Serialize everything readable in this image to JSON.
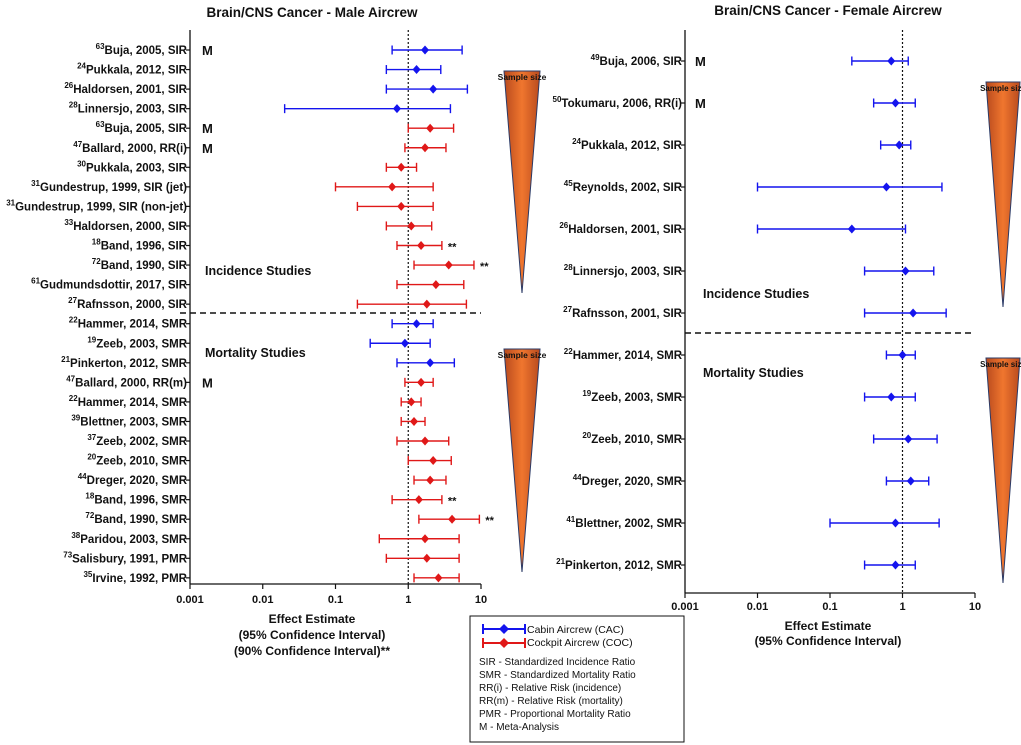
{
  "colors": {
    "cabin": "#1414ee",
    "cockpit": "#e01818",
    "axis": "#111111",
    "text": "#111111"
  },
  "icons": {
    "marker": "diamond-icon",
    "sample_size": "sample-size-triangle-icon"
  },
  "chart_data": [
    {
      "type": "forest",
      "title": "Brain/CNS Cancer - Male Aircrew",
      "xscale": "log",
      "xlim": [
        0.001,
        10
      ],
      "ticks": [
        0.001,
        0.01,
        0.1,
        1,
        10
      ],
      "tick_labels": [
        "0.001",
        "0.01",
        "0.1",
        "1",
        "10"
      ],
      "xlabel_lines": [
        "Effect Estimate",
        "(95%  Confidence  Interval)",
        "(90% Confidence Interval)**"
      ],
      "reference_line": 1,
      "section_labels": [
        "Incidence Studies",
        "Mortality Studies"
      ],
      "sample_size_label": "Sample size",
      "rows": [
        {
          "sup": "63",
          "label": "Buja, 2005, SIR",
          "group": "cabin",
          "est": 1.7,
          "lo": 0.6,
          "hi": 5.5,
          "meta": "M",
          "note": ""
        },
        {
          "sup": "24",
          "label": "Pukkala, 2012, SIR",
          "group": "cabin",
          "est": 1.3,
          "lo": 0.5,
          "hi": 2.8,
          "meta": "",
          "note": ""
        },
        {
          "sup": "26",
          "label": "Haldorsen, 2001, SIR",
          "group": "cabin",
          "est": 2.2,
          "lo": 0.5,
          "hi": 6.5,
          "meta": "",
          "note": ""
        },
        {
          "sup": "28",
          "label": "Linnersjo, 2003, SIR",
          "group": "cabin",
          "est": 0.7,
          "lo": 0.02,
          "hi": 3.8,
          "meta": "",
          "note": ""
        },
        {
          "sup": "63",
          "label": "Buja, 2005, SIR",
          "group": "cockpit",
          "est": 2.0,
          "lo": 1.0,
          "hi": 4.2,
          "meta": "M",
          "note": ""
        },
        {
          "sup": "47",
          "label": "Ballard, 2000, RR(i)",
          "group": "cockpit",
          "est": 1.7,
          "lo": 0.9,
          "hi": 3.3,
          "meta": "M",
          "note": ""
        },
        {
          "sup": "30",
          "label": "Pukkala, 2003, SIR",
          "group": "cockpit",
          "est": 0.8,
          "lo": 0.5,
          "hi": 1.3,
          "meta": "",
          "note": ""
        },
        {
          "sup": "31",
          "label": "Gundestrup, 1999, SIR (jet)",
          "group": "cockpit",
          "est": 0.6,
          "lo": 0.1,
          "hi": 2.2,
          "meta": "",
          "note": ""
        },
        {
          "sup": "31",
          "label": "Gundestrup, 1999, SIR (non-jet)",
          "group": "cockpit",
          "est": 0.8,
          "lo": 0.2,
          "hi": 2.2,
          "meta": "",
          "note": ""
        },
        {
          "sup": "33",
          "label": "Haldorsen, 2000, SIR",
          "group": "cockpit",
          "est": 1.1,
          "lo": 0.5,
          "hi": 2.1,
          "meta": "",
          "note": ""
        },
        {
          "sup": "18",
          "label": "Band, 1996, SIR",
          "group": "cockpit",
          "est": 1.5,
          "lo": 0.7,
          "hi": 2.9,
          "meta": "",
          "note": "**"
        },
        {
          "sup": "72",
          "label": "Band, 1990, SIR",
          "group": "cockpit",
          "est": 3.6,
          "lo": 1.2,
          "hi": 8.0,
          "meta": "",
          "note": "**"
        },
        {
          "sup": "61",
          "label": "Gudmundsdottir, 2017, SIR",
          "group": "cockpit",
          "est": 2.4,
          "lo": 0.7,
          "hi": 5.8,
          "meta": "",
          "note": ""
        },
        {
          "sup": "27",
          "label": "Rafnsson, 2000, SIR",
          "group": "cockpit",
          "est": 1.8,
          "lo": 0.2,
          "hi": 6.3,
          "meta": "",
          "note": ""
        },
        {
          "sup": "22",
          "label": "Hammer, 2014, SMR",
          "group": "cabin",
          "est": 1.3,
          "lo": 0.6,
          "hi": 2.2,
          "meta": "",
          "note": ""
        },
        {
          "sup": "19",
          "label": "Zeeb, 2003, SMR",
          "group": "cabin",
          "est": 0.9,
          "lo": 0.3,
          "hi": 2.0,
          "meta": "",
          "note": ""
        },
        {
          "sup": "21",
          "label": "Pinkerton, 2012, SMR",
          "group": "cabin",
          "est": 2.0,
          "lo": 0.7,
          "hi": 4.3,
          "meta": "",
          "note": ""
        },
        {
          "sup": "47",
          "label": "Ballard, 2000, RR(m)",
          "group": "cockpit",
          "est": 1.5,
          "lo": 0.9,
          "hi": 2.2,
          "meta": "M",
          "note": ""
        },
        {
          "sup": "22",
          "label": "Hammer, 2014, SMR",
          "group": "cockpit",
          "est": 1.1,
          "lo": 0.8,
          "hi": 1.5,
          "meta": "",
          "note": ""
        },
        {
          "sup": "39",
          "label": "Blettner, 2003, SMR",
          "group": "cockpit",
          "est": 1.2,
          "lo": 0.8,
          "hi": 1.7,
          "meta": "",
          "note": ""
        },
        {
          "sup": "37",
          "label": "Zeeb, 2002, SMR",
          "group": "cockpit",
          "est": 1.7,
          "lo": 0.7,
          "hi": 3.6,
          "meta": "",
          "note": ""
        },
        {
          "sup": "20",
          "label": "Zeeb, 2010, SMR",
          "group": "cockpit",
          "est": 2.2,
          "lo": 1.0,
          "hi": 3.9,
          "meta": "",
          "note": ""
        },
        {
          "sup": "44",
          "label": "Dreger, 2020, SMR",
          "group": "cockpit",
          "est": 2.0,
          "lo": 1.2,
          "hi": 3.3,
          "meta": "",
          "note": ""
        },
        {
          "sup": "18",
          "label": "Band, 1996, SMR",
          "group": "cockpit",
          "est": 1.4,
          "lo": 0.6,
          "hi": 2.9,
          "meta": "",
          "note": "**"
        },
        {
          "sup": "72",
          "label": "Band, 1990, SMR",
          "group": "cockpit",
          "est": 4.0,
          "lo": 1.4,
          "hi": 9.5,
          "meta": "",
          "note": "**"
        },
        {
          "sup": "38",
          "label": "Paridou, 2003, SMR",
          "group": "cockpit",
          "est": 1.7,
          "lo": 0.4,
          "hi": 5.0,
          "meta": "",
          "note": ""
        },
        {
          "sup": "73",
          "label": "Salisbury, 1991, PMR",
          "group": "cockpit",
          "est": 1.8,
          "lo": 0.5,
          "hi": 5.0,
          "meta": "",
          "note": ""
        },
        {
          "sup": "35",
          "label": "Irvine, 1992, PMR",
          "group": "cockpit",
          "est": 2.6,
          "lo": 1.2,
          "hi": 5.0,
          "meta": "",
          "note": ""
        }
      ]
    },
    {
      "type": "forest",
      "title": "Brain/CNS Cancer - Female Aircrew",
      "xscale": "log",
      "xlim": [
        0.001,
        10
      ],
      "ticks": [
        0.001,
        0.01,
        0.1,
        1,
        10
      ],
      "tick_labels": [
        "0.001",
        "0.01",
        "0.1",
        "1",
        "10"
      ],
      "xlabel_lines": [
        "Effect Estimate",
        "(95%  Confidence  Interval)"
      ],
      "reference_line": 1,
      "section_labels": [
        "Incidence Studies",
        "Mortality Studies"
      ],
      "sample_size_label": "Sample size",
      "rows": [
        {
          "sup": "49",
          "label": "Buja, 2006, SIR",
          "group": "cabin",
          "est": 0.7,
          "lo": 0.2,
          "hi": 1.2,
          "meta": "M",
          "note": ""
        },
        {
          "sup": "50",
          "label": "Tokumaru, 2006, RR(i)",
          "group": "cabin",
          "est": 0.8,
          "lo": 0.4,
          "hi": 1.5,
          "meta": "M",
          "note": ""
        },
        {
          "sup": "24",
          "label": "Pukkala, 2012, SIR",
          "group": "cabin",
          "est": 0.9,
          "lo": 0.5,
          "hi": 1.3,
          "meta": "",
          "note": ""
        },
        {
          "sup": "45",
          "label": "Reynolds, 2002, SIR",
          "group": "cabin",
          "est": 0.6,
          "lo": 0.01,
          "hi": 3.5,
          "meta": "",
          "note": ""
        },
        {
          "sup": "26",
          "label": "Haldorsen, 2001, SIR",
          "group": "cabin",
          "est": 0.2,
          "lo": 0.01,
          "hi": 1.1,
          "meta": "",
          "note": ""
        },
        {
          "sup": "28",
          "label": "Linnersjo, 2003, SIR",
          "group": "cabin",
          "est": 1.1,
          "lo": 0.3,
          "hi": 2.7,
          "meta": "",
          "note": ""
        },
        {
          "sup": "27",
          "label": "Rafnsson, 2001, SIR",
          "group": "cabin",
          "est": 1.4,
          "lo": 0.3,
          "hi": 4.0,
          "meta": "",
          "note": ""
        },
        {
          "sup": "22",
          "label": "Hammer, 2014, SMR",
          "group": "cabin",
          "est": 1.0,
          "lo": 0.6,
          "hi": 1.5,
          "meta": "",
          "note": ""
        },
        {
          "sup": "19",
          "label": "Zeeb, 2003, SMR",
          "group": "cabin",
          "est": 0.7,
          "lo": 0.3,
          "hi": 1.5,
          "meta": "",
          "note": ""
        },
        {
          "sup": "20",
          "label": "Zeeb, 2010, SMR",
          "group": "cabin",
          "est": 1.2,
          "lo": 0.4,
          "hi": 3.0,
          "meta": "",
          "note": ""
        },
        {
          "sup": "44",
          "label": "Dreger, 2020, SMR",
          "group": "cabin",
          "est": 1.3,
          "lo": 0.6,
          "hi": 2.3,
          "meta": "",
          "note": ""
        },
        {
          "sup": "41",
          "label": "Blettner, 2002, SMR",
          "group": "cabin",
          "est": 0.8,
          "lo": 0.1,
          "hi": 3.2,
          "meta": "",
          "note": ""
        },
        {
          "sup": "21",
          "label": "Pinkerton, 2012, SMR",
          "group": "cabin",
          "est": 0.8,
          "lo": 0.3,
          "hi": 1.5,
          "meta": "",
          "note": ""
        }
      ]
    }
  ],
  "legend": {
    "cabin_label": "Cabin Aircrew (CAC)",
    "cockpit_label": "Cockpit Aircrew (COC)",
    "abbreviations": [
      "SIR - Standardized Incidence Ratio",
      "SMR - Standardized Mortality Ratio",
      "RR(i) - Relative Risk  (incidence)",
      "RR(m) - Relative Risk  (mortality)",
      "PMR - Proportional Mortality Ratio",
      "M  - Meta-Analysis"
    ]
  }
}
